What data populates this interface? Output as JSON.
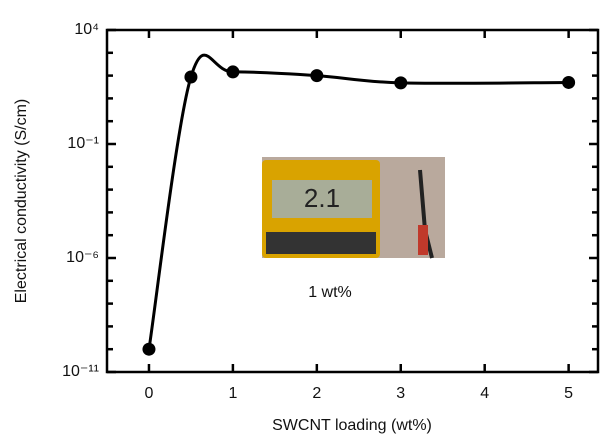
{
  "chart_data": {
    "type": "scatter",
    "xlabel": "SWCNT loading (wt%)",
    "ylabel": "Electrical conductivity (S/cm)",
    "x": [
      0,
      0.5,
      1,
      2,
      3,
      5
    ],
    "series": [
      {
        "color": "#000000",
        "values": [
          1e-10,
          87,
          145,
          100,
          48,
          50
        ]
      }
    ],
    "smooth_line": true,
    "xlim": [
      -0.5,
      5.35
    ],
    "xticks": [
      0,
      1,
      2,
      3,
      4,
      5
    ],
    "ylim": [
      1e-11,
      10000
    ],
    "y_log_scale": true,
    "yticks": [
      {
        "value": 1e-11,
        "label": "10⁻¹¹"
      },
      {
        "value": 1e-06,
        "label": "10⁻⁶"
      },
      {
        "value": 0.1,
        "label": "10⁻¹"
      },
      {
        "value": 10000,
        "label": "10⁴"
      }
    ],
    "y_minor_ticks": [
      1e-10,
      1e-09,
      1e-08,
      1e-07,
      1e-05,
      0.0001,
      0.001,
      0.01,
      1,
      10,
      100,
      1000
    ],
    "inset": {
      "display": "2.1",
      "caption": "1 wt%"
    }
  }
}
